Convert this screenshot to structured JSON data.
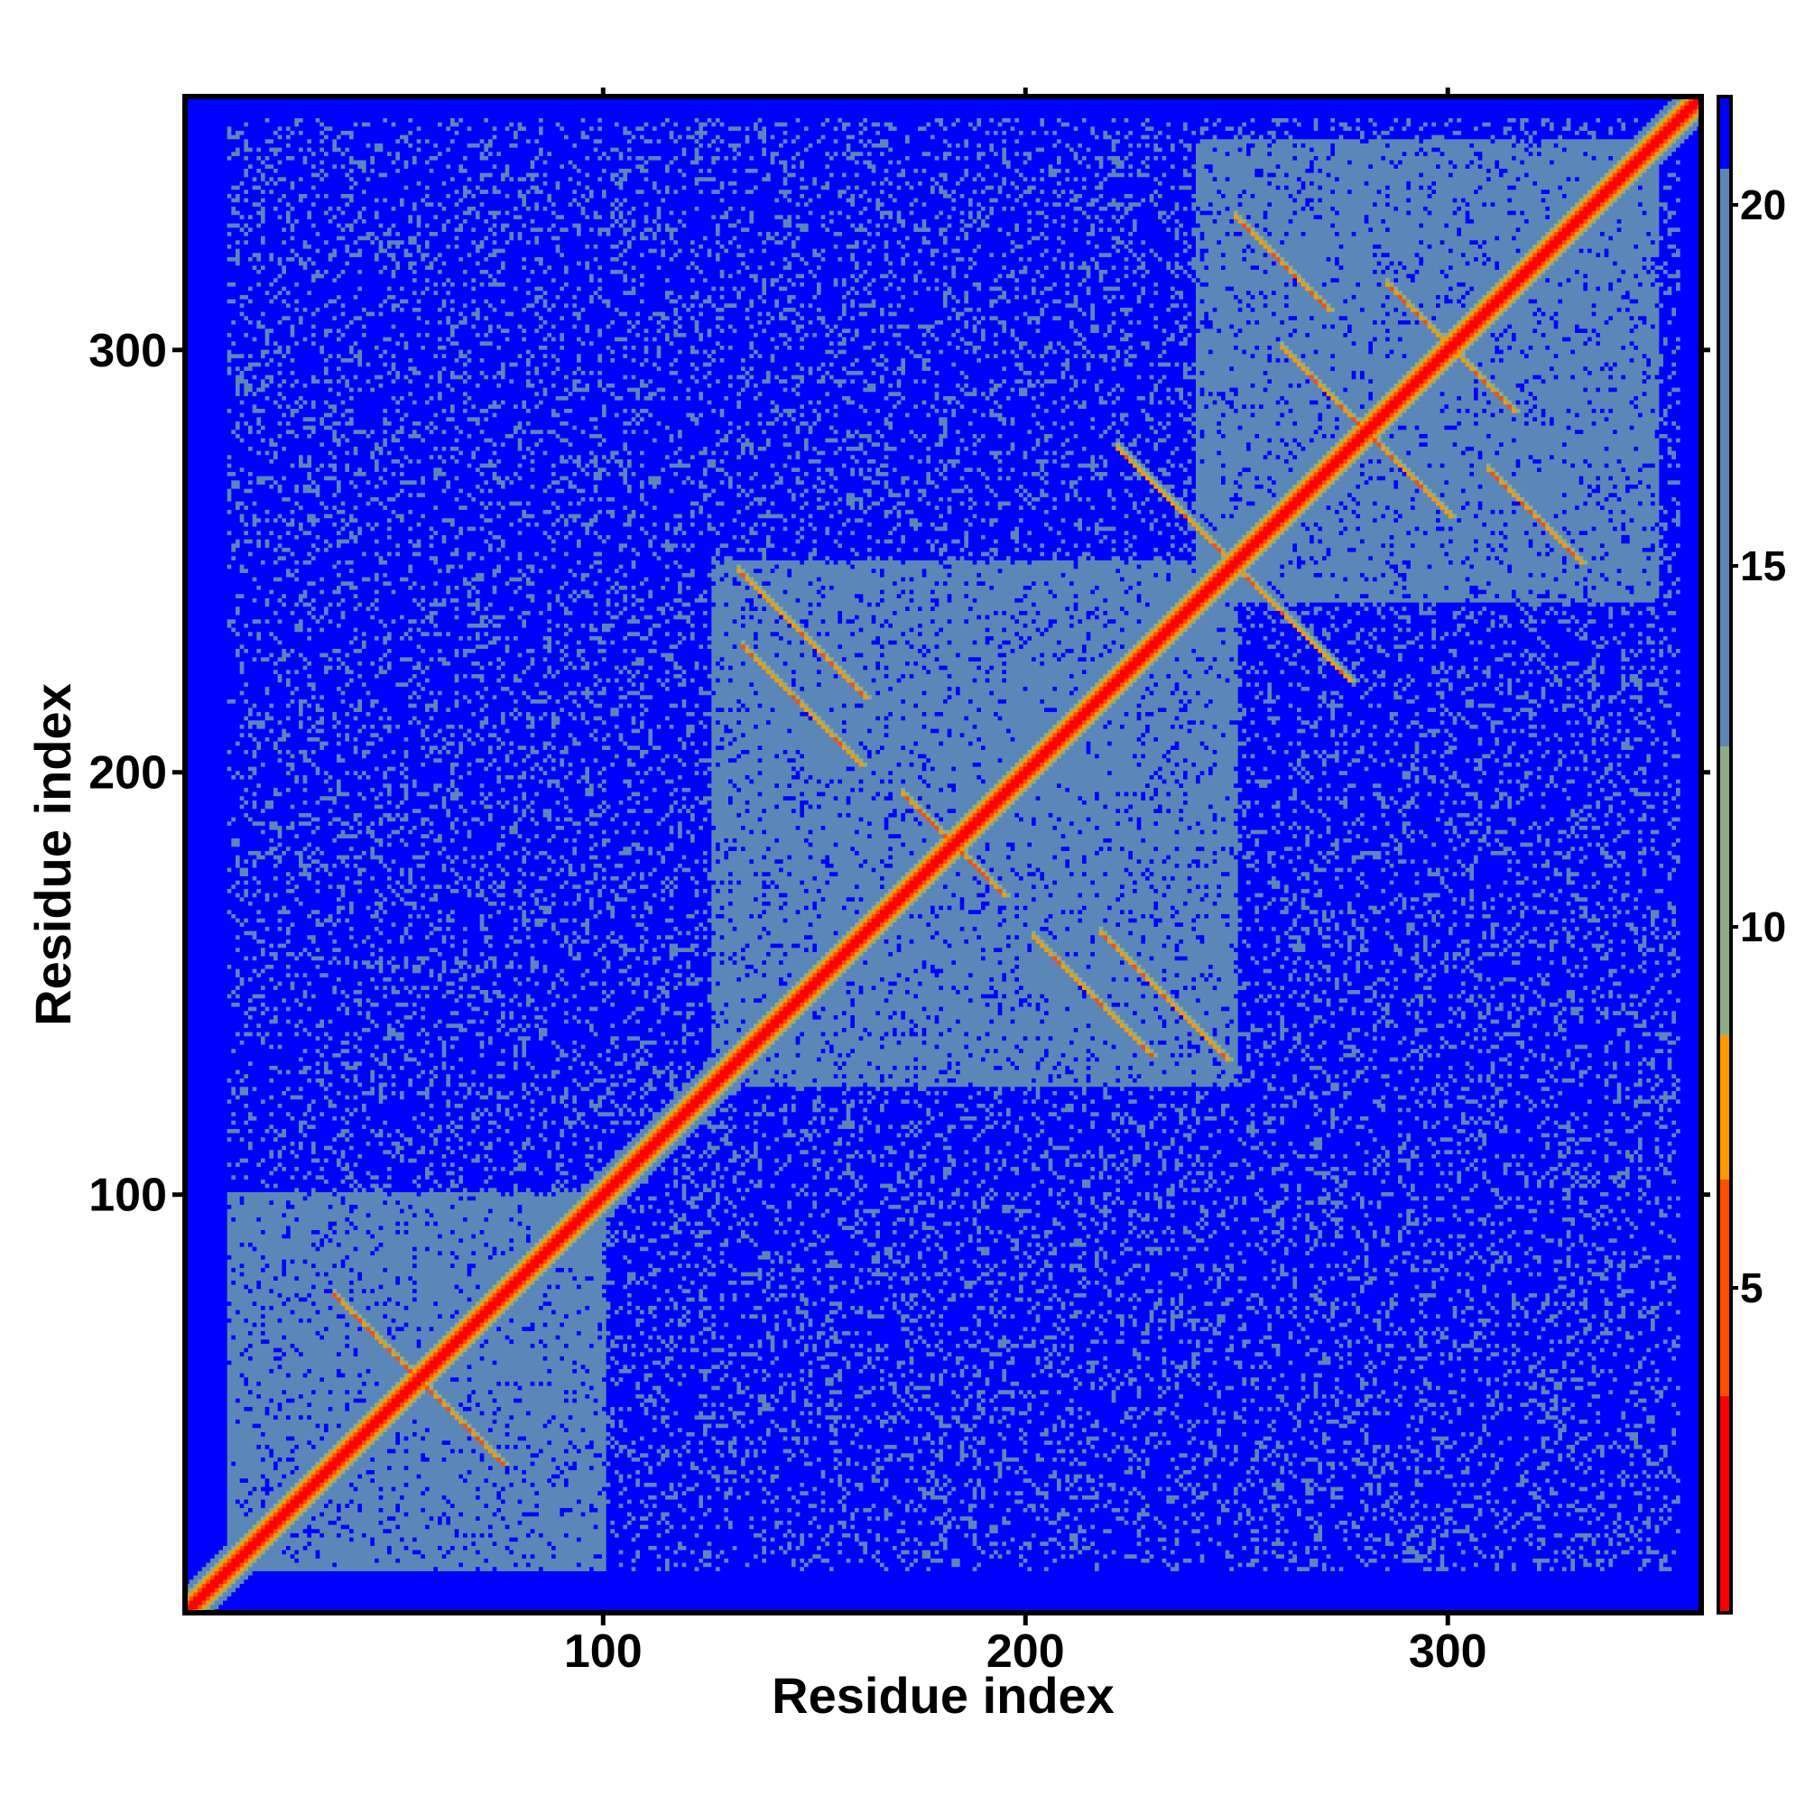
{
  "chart_data": {
    "type": "heatmap",
    "title": "",
    "xlabel": "Residue index",
    "ylabel": "Residue index",
    "xlim": [
      1,
      360
    ],
    "ylim": [
      1,
      360
    ],
    "x_ticks": [
      100,
      200,
      300
    ],
    "y_ticks": [
      100,
      200,
      300
    ],
    "colorbar": {
      "ticks": [
        5,
        10,
        15,
        20
      ],
      "range": [
        0.5,
        21.5
      ],
      "colors": [
        {
          "from": 0.5,
          "to": 3.5,
          "color": "#ff0000"
        },
        {
          "from": 3.5,
          "to": 6.5,
          "color": "#ff4d00"
        },
        {
          "from": 6.5,
          "to": 8.5,
          "color": "#ff9900"
        },
        {
          "from": 8.5,
          "to": 12.5,
          "color": "#8fae88"
        },
        {
          "from": 12.5,
          "to": 20.5,
          "color": "#5b87b8"
        },
        {
          "from": 20.5,
          "to": 21.5,
          "color": "#0000ff"
        }
      ]
    },
    "cutoff_value": 21,
    "diagonal_width_residues": 6,
    "domains": [
      {
        "start": 10,
        "end": 100
      },
      {
        "start": 125,
        "end": 250
      },
      {
        "start": 240,
        "end": 350
      }
    ],
    "helix_cross_contacts": [
      {
        "x": 146,
        "y": 232,
        "len": 30
      },
      {
        "x": 215,
        "y": 146,
        "len": 28
      },
      {
        "x": 238,
        "y": 258,
        "len": 35
      },
      {
        "x": 280,
        "y": 280,
        "len": 40
      },
      {
        "x": 300,
        "y": 300,
        "len": 30
      },
      {
        "x": 182,
        "y": 182,
        "len": 24
      },
      {
        "x": 55,
        "y": 55,
        "len": 40
      },
      {
        "x": 260,
        "y": 320,
        "len": 22
      },
      {
        "x": 320,
        "y": 260,
        "len": 22
      }
    ]
  }
}
